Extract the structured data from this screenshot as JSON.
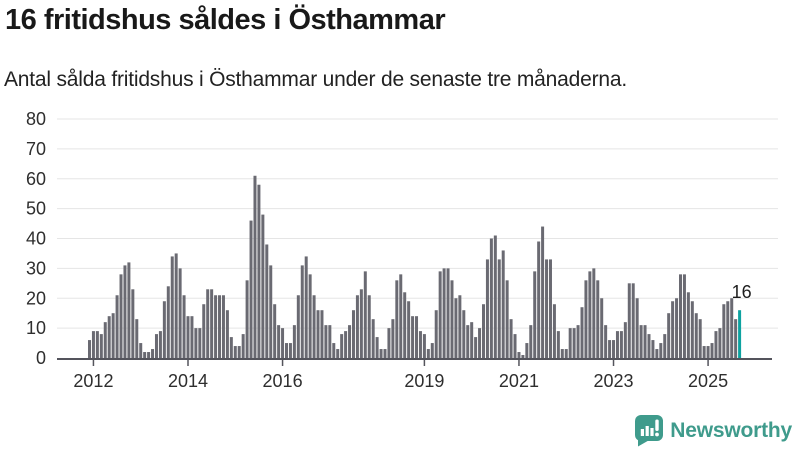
{
  "header": {
    "title": "16 fritidshus såldes i Östhammar",
    "subtitle": "Antal sålda fritidshus i Östhammar under de senaste tre månaderna."
  },
  "chart_data": {
    "type": "bar",
    "title": "16 fritidshus såldes i Östhammar",
    "xlabel": "",
    "ylabel": "",
    "ylim": [
      0,
      80
    ],
    "grid": true,
    "legend": "none",
    "x_start_month": "2011-12",
    "x_interval": "1 month",
    "yticks": [
      0,
      10,
      20,
      30,
      40,
      50,
      60,
      70,
      80
    ],
    "xticks": [
      {
        "label": "2012",
        "index": 1
      },
      {
        "label": "2014",
        "index": 25
      },
      {
        "label": "2016",
        "index": 49
      },
      {
        "label": "2019",
        "index": 85
      },
      {
        "label": "2021",
        "index": 109
      },
      {
        "label": "2023",
        "index": 133
      },
      {
        "label": "2025",
        "index": 157
      }
    ],
    "values": [
      6,
      9,
      9,
      8,
      12,
      14,
      15,
      21,
      28,
      31,
      32,
      23,
      13,
      5,
      2,
      2,
      3,
      8,
      9,
      19,
      24,
      34,
      35,
      30,
      21,
      14,
      14,
      10,
      10,
      18,
      23,
      23,
      21,
      21,
      21,
      16,
      7,
      4,
      4,
      8,
      26,
      46,
      61,
      58,
      48,
      38,
      31,
      18,
      11,
      10,
      5,
      5,
      11,
      21,
      31,
      34,
      28,
      21,
      16,
      16,
      11,
      11,
      5,
      3,
      8,
      9,
      11,
      16,
      21,
      23,
      29,
      21,
      13,
      7,
      3,
      3,
      10,
      13,
      26,
      28,
      22,
      19,
      14,
      14,
      9,
      8,
      3,
      5,
      16,
      29,
      30,
      30,
      26,
      20,
      21,
      16,
      11,
      12,
      7,
      10,
      18,
      33,
      40,
      41,
      33,
      36,
      26,
      13,
      8,
      2,
      1,
      5,
      11,
      29,
      39,
      44,
      33,
      33,
      18,
      9,
      3,
      3,
      10,
      10,
      11,
      17,
      26,
      29,
      30,
      26,
      20,
      11,
      6,
      6,
      9,
      9,
      12,
      25,
      25,
      20,
      11,
      11,
      8,
      6,
      3,
      5,
      8,
      15,
      19,
      20,
      28,
      28,
      22,
      19,
      15,
      13,
      4,
      4,
      5,
      9,
      10,
      18,
      19,
      20,
      13,
      16
    ],
    "highlight": {
      "index": 165,
      "value": 16,
      "label": "16",
      "color": "#0da2a0"
    },
    "colors": {
      "bar": "#6a6a72",
      "grid": "#e5e5e5",
      "axis": "#54545c",
      "tick_text": "#2e2e2e"
    }
  },
  "footer": {
    "brand": "Newsworthy",
    "brand_color": "#3f9b8c"
  }
}
